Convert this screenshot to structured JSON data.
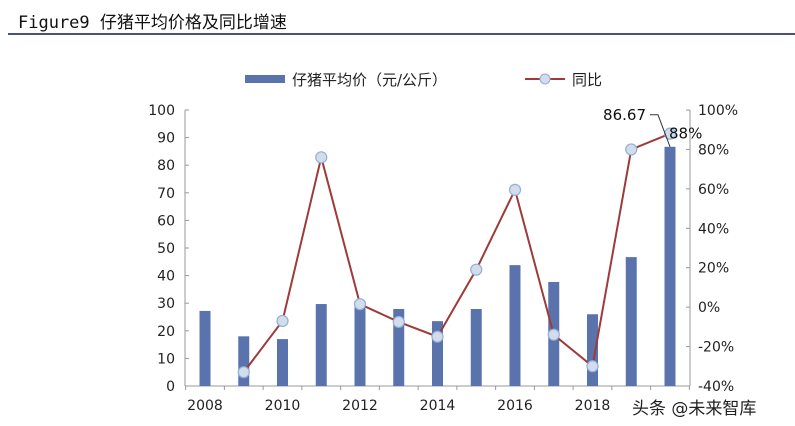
{
  "title": "Figure9 仔猪平均价格及同比增速",
  "watermark": "头条 @未来智库",
  "chart_data": {
    "type": "bar+line",
    "categories": [
      "2008",
      "2009",
      "2010",
      "2011",
      "2012",
      "2013",
      "2014",
      "2015",
      "2016",
      "2017",
      "2018",
      "2019",
      "2020"
    ],
    "x_tick_labels": [
      "2008",
      "2010",
      "2012",
      "2014",
      "2016",
      "2018"
    ],
    "series": [
      {
        "name": "仔猪平均价（元/公斤）",
        "type": "bar",
        "axis": "left",
        "color": "#5b73ad",
        "values": [
          27.2,
          18,
          17,
          29.7,
          30.8,
          27.9,
          23.5,
          27.9,
          43.8,
          37.7,
          26,
          46.7,
          86.67
        ]
      },
      {
        "name": "同比",
        "type": "line",
        "axis": "right",
        "color": "#9e3a3a",
        "values": [
          null,
          -33,
          -7,
          76,
          1.5,
          -7.5,
          -15,
          19,
          59.5,
          -14,
          -30,
          80,
          88
        ]
      }
    ],
    "left_axis": {
      "ylim": [
        0,
        100
      ],
      "ticks": [
        "0",
        "10",
        "20",
        "30",
        "40",
        "50",
        "60",
        "70",
        "80",
        "90",
        "100"
      ]
    },
    "right_axis": {
      "ylim": [
        -40,
        100
      ],
      "ticks": [
        "-40%",
        "-20%",
        "0%",
        "20%",
        "40%",
        "60%",
        "80%",
        "100%"
      ]
    },
    "annotations": [
      "86.67",
      "88%"
    ],
    "legend": "top-center"
  }
}
